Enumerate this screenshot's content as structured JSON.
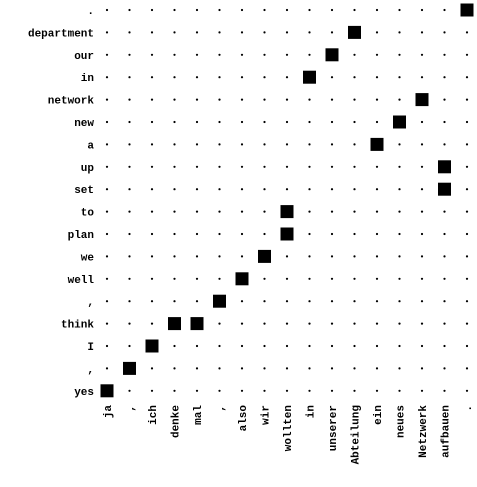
{
  "chart_data": {
    "type": "heatmap",
    "title": "",
    "x_tokens": [
      "ja",
      ",",
      "ich",
      "denke",
      "mal",
      ",",
      "also",
      "wir",
      "wollten",
      "in",
      "unserer",
      "Abteilung",
      "ein",
      "neues",
      "Netzwerk",
      "aufbauen",
      "."
    ],
    "y_tokens": [
      ".",
      "department",
      "our",
      "in",
      "network",
      "new",
      "a",
      "up",
      "set",
      "to",
      "plan",
      "we",
      "well",
      ",",
      "think",
      "I",
      ",",
      "yes"
    ],
    "alignments": [
      {
        "x": "ja",
        "x_index": 0,
        "y": "yes",
        "y_index": 17
      },
      {
        "x": ",",
        "x_index": 1,
        "y": ",",
        "y_index": 16
      },
      {
        "x": "ich",
        "x_index": 2,
        "y": "I",
        "y_index": 15
      },
      {
        "x": "denke",
        "x_index": 3,
        "y": "think",
        "y_index": 14
      },
      {
        "x": "mal",
        "x_index": 4,
        "y": "think",
        "y_index": 14
      },
      {
        "x": ",",
        "x_index": 5,
        "y": ",",
        "y_index": 13
      },
      {
        "x": "also",
        "x_index": 6,
        "y": "well",
        "y_index": 12
      },
      {
        "x": "wir",
        "x_index": 7,
        "y": "we",
        "y_index": 11
      },
      {
        "x": "wollten",
        "x_index": 8,
        "y": "plan",
        "y_index": 10
      },
      {
        "x": "wollten",
        "x_index": 8,
        "y": "to",
        "y_index": 9
      },
      {
        "x": "in",
        "x_index": 9,
        "y": "in",
        "y_index": 3
      },
      {
        "x": "unserer",
        "x_index": 10,
        "y": "our",
        "y_index": 2
      },
      {
        "x": "Abteilung",
        "x_index": 11,
        "y": "department",
        "y_index": 1
      },
      {
        "x": "ein",
        "x_index": 12,
        "y": "a",
        "y_index": 6
      },
      {
        "x": "neues",
        "x_index": 13,
        "y": "new",
        "y_index": 5
      },
      {
        "x": "Netzwerk",
        "x_index": 14,
        "y": "network",
        "y_index": 4
      },
      {
        "x": "aufbauen",
        "x_index": 15,
        "y": "set",
        "y_index": 8
      },
      {
        "x": "aufbauen",
        "x_index": 15,
        "y": "up",
        "y_index": 7
      },
      {
        "x": ".",
        "x_index": 16,
        "y": ".",
        "y_index": 0
      }
    ],
    "colors": {
      "cell": "#000000",
      "grid_dot": "#000000",
      "background": "#ffffff"
    }
  }
}
